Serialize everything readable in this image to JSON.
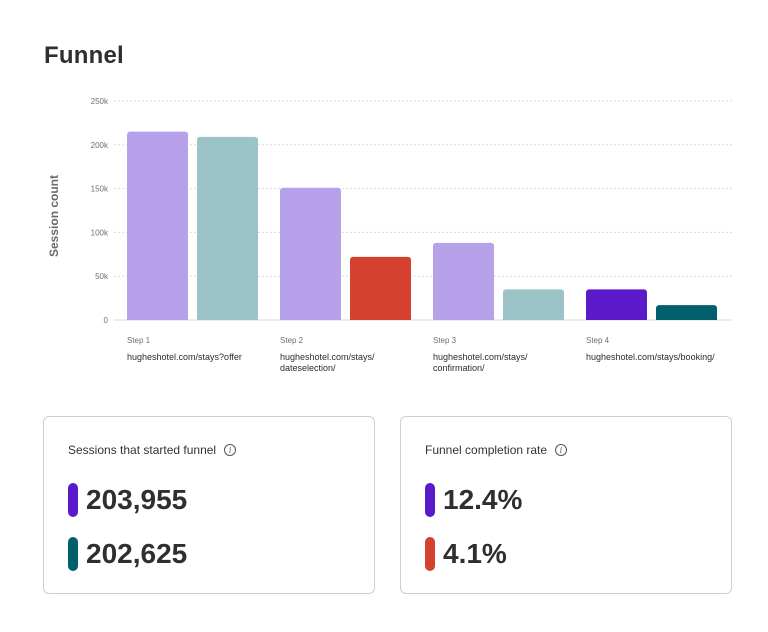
{
  "page": {
    "title": "Funnel"
  },
  "chart_data": {
    "type": "bar",
    "ylabel": "Session count",
    "ylim": [
      0,
      250000
    ],
    "yticks": [
      0,
      50000,
      100000,
      150000,
      200000,
      250000
    ],
    "ytick_labels": [
      "0",
      "50k",
      "100k",
      "150k",
      "200k",
      "250k"
    ],
    "grid": true,
    "categories": [
      {
        "step": "Step 1",
        "url": "hugheshotel.com/stays?offer"
      },
      {
        "step": "Step 2",
        "url": "hugheshotel.com/stays/\ndateselection/"
      },
      {
        "step": "Step 3",
        "url": "hugheshotel.com/stays/\nconfirmation/"
      },
      {
        "step": "Step 4",
        "url": "hugheshotel.com/stays/booking/"
      }
    ],
    "series": [
      {
        "colors": [
          "#b6a1ea",
          "#b6a1ea",
          "#b6a1ea",
          "#5b1ac9"
        ],
        "values": [
          215000,
          151000,
          88000,
          35000
        ]
      },
      {
        "colors": [
          "#9cc3c7",
          "#d4422f",
          "#9cc3c7",
          "#005f6b"
        ],
        "values": [
          209000,
          72000,
          35000,
          17000
        ]
      }
    ]
  },
  "cards": [
    {
      "title": "Sessions that started funnel",
      "icon": "info-icon",
      "metrics": [
        {
          "value": "203,955",
          "color": "#5b1ac9"
        },
        {
          "value": "202,625",
          "color": "#005f6b"
        }
      ]
    },
    {
      "title": "Funnel completion rate",
      "icon": "info-icon",
      "metrics": [
        {
          "value": "12.4%",
          "color": "#5b1ac9"
        },
        {
          "value": "4.1%",
          "color": "#d4422f"
        }
      ]
    }
  ]
}
